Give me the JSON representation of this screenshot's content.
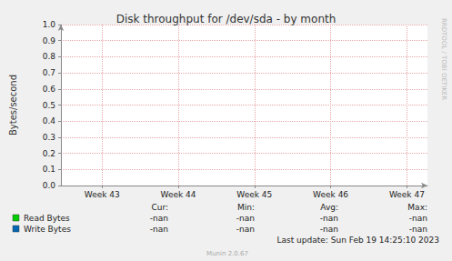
{
  "chart_data": {
    "type": "line",
    "title": "Disk throughput for /dev/sda - by month",
    "y_label": "Bytes/second",
    "x": [],
    "series": [
      {
        "name": "Read Bytes",
        "color": "#00cc00",
        "values": [],
        "stats": [
          "-nan",
          "-nan",
          "-nan",
          "-nan"
        ]
      },
      {
        "name": "Write Bytes",
        "color": "#0066b3",
        "values": [],
        "stats": [
          "-nan",
          "-nan",
          "-nan",
          "-nan"
        ]
      }
    ],
    "stats_columns": [
      "Cur:",
      "Min:",
      "Avg:",
      "Max:"
    ],
    "xlim": [
      42.46,
      47.27
    ],
    "xticks": [
      {
        "value": 43,
        "label": "Week 43"
      },
      {
        "value": 44,
        "label": "Week 44"
      },
      {
        "value": 45,
        "label": "Week 45"
      },
      {
        "value": 46,
        "label": "Week 46"
      },
      {
        "value": 47,
        "label": "Week 47"
      }
    ],
    "ylim": [
      0,
      1
    ],
    "yticks": [
      {
        "value": 0,
        "label": "0.0"
      },
      0.1,
      0.2,
      0.3,
      0.4,
      0.5,
      0.6,
      0.7,
      0.8,
      0.9,
      {
        "value": 1,
        "label": "1.0"
      }
    ],
    "grid": true,
    "annotations": [
      "Last update: Sun Feb 19 14:25:10 2023",
      "Munin 2.0.67",
      "RRDTOOL / TOBI OETIKER"
    ]
  }
}
